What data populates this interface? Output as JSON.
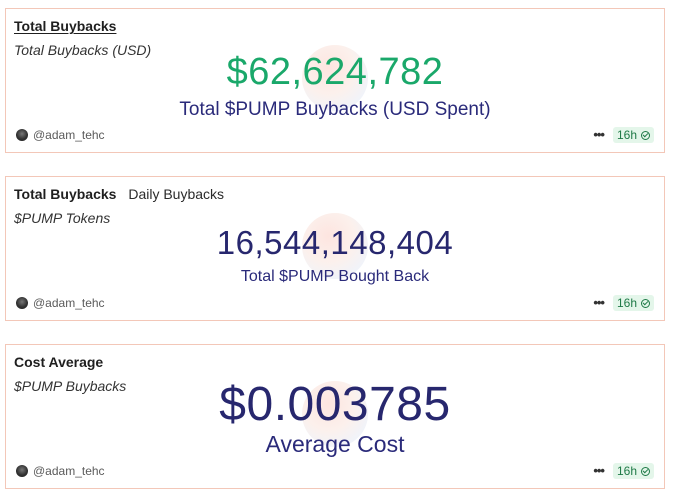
{
  "cards": [
    {
      "title": "Total Buybacks",
      "subtitle": "Total Buybacks (USD)",
      "value": "$62,624,782",
      "label": "Total $PUMP Buybacks (USD Spent)",
      "author": "@adam_tehc",
      "age": "16h",
      "value_color": "#1aa86a"
    },
    {
      "title": "Total Buybacks",
      "tab": "Daily Buybacks",
      "subtitle": "$PUMP Tokens",
      "value": "16,544,148,404",
      "label": "Total $PUMP Bought Back",
      "author": "@adam_tehc",
      "age": "16h",
      "value_color": "#27276e"
    },
    {
      "title": "Cost Average",
      "subtitle": "$PUMP Buybacks",
      "value": "$0.003785",
      "label": "Average Cost",
      "author": "@adam_tehc",
      "age": "16h",
      "value_color": "#27276e"
    }
  ],
  "icons": {
    "more": "more-options-icon",
    "status": "check-circle-icon",
    "avatar": "user-avatar"
  },
  "colors": {
    "card_border": "#f3c7b8",
    "badge_bg": "#e4f6ea",
    "badge_text": "#1f7a47"
  }
}
